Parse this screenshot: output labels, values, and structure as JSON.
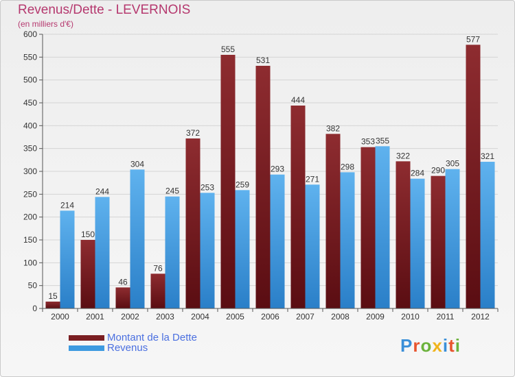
{
  "title": "Revenus/Dette - LEVERNOIS",
  "subtitle": "(en milliers d'€)",
  "legend": {
    "debt": "Montant de la Dette",
    "revenue": "Revenus"
  },
  "logo": {
    "text": "Proxiti",
    "colors": [
      "#3a8fd8",
      "#e8542e",
      "#6bb23c",
      "#f0b41c",
      "#3a8fd8",
      "#e8542e",
      "#6bb23c"
    ]
  },
  "colors": {
    "debt": "#7a1e22",
    "revenue": "#3d9ae0"
  },
  "chart_data": {
    "type": "bar",
    "title": "Revenus/Dette - LEVERNOIS",
    "ylabel": "(en milliers d'€)",
    "categories": [
      "2000",
      "2001",
      "2002",
      "2003",
      "2004",
      "2005",
      "2006",
      "2007",
      "2008",
      "2009",
      "2010",
      "2011",
      "2012"
    ],
    "series": [
      {
        "name": "Montant de la Dette",
        "values": [
          15,
          150,
          46,
          76,
          372,
          555,
          531,
          444,
          382,
          353,
          322,
          290,
          577
        ]
      },
      {
        "name": "Revenus",
        "values": [
          214,
          244,
          304,
          245,
          253,
          259,
          293,
          271,
          298,
          355,
          284,
          305,
          321
        ]
      }
    ],
    "ylim": [
      0,
      600
    ],
    "yticks": [
      0,
      50,
      100,
      150,
      200,
      250,
      300,
      350,
      400,
      450,
      500,
      550,
      600
    ],
    "grid": true,
    "legend_position": "bottom-left"
  }
}
